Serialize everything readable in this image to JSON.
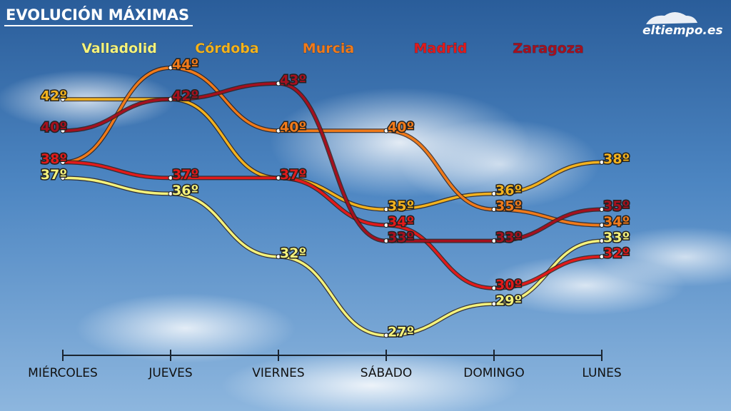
{
  "chart_data": {
    "type": "line",
    "title": "EVOLUCIÓN MÁXIMAS",
    "source": "eltiempo.es",
    "categories": [
      "MIÉRCOLES",
      "JUEVES",
      "VIERNES",
      "SÁBADO",
      "DOMINGO",
      "LUNES"
    ],
    "series": [
      {
        "name": "Valladolid",
        "color": "#f4f27c",
        "values": [
          37,
          36,
          32,
          27,
          29,
          33
        ],
        "value_labels": [
          "37º",
          "36º",
          "32º",
          "27º",
          "29º",
          "33º"
        ]
      },
      {
        "name": "Córdoba",
        "color": "#f2b21e",
        "values": [
          42,
          42,
          37,
          35,
          36,
          38
        ],
        "value_labels": [
          "42º",
          "42º",
          "37º",
          "35º",
          "36º",
          "38º"
        ]
      },
      {
        "name": "Murcia",
        "color": "#f07a1a",
        "values": [
          38,
          44,
          40,
          40,
          35,
          34
        ],
        "value_labels": [
          "38º",
          "44º",
          "40º",
          "40º",
          "35º",
          "34º"
        ]
      },
      {
        "name": "Madrid",
        "color": "#e11a1a",
        "values": [
          38,
          37,
          37,
          34,
          30,
          32
        ],
        "value_labels": [
          "38º",
          "37º",
          "37º",
          "34º",
          "30º",
          "32º"
        ]
      },
      {
        "name": "Zaragoza",
        "color": "#a5101e",
        "values": [
          40,
          42,
          43,
          33,
          33,
          35
        ],
        "value_labels": [
          "40º",
          "42º",
          "43º",
          "33º",
          "33º",
          "35º"
        ]
      }
    ]
  }
}
